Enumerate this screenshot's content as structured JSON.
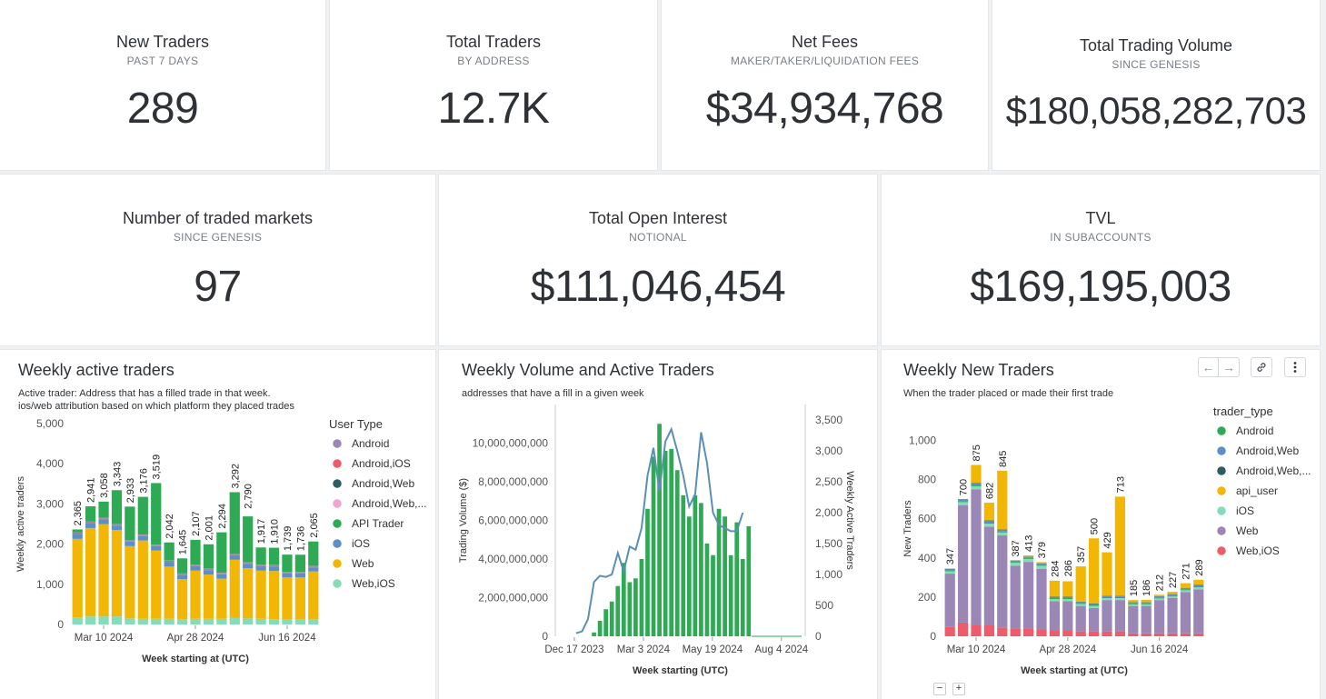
{
  "kpis_row1": [
    {
      "title": "New Traders",
      "subtitle": "PAST 7 DAYS",
      "value": "289"
    },
    {
      "title": "Total Traders",
      "subtitle": "BY ADDRESS",
      "value": "12.7K"
    },
    {
      "title": "Net Fees",
      "subtitle": "MAKER/TAKER/LIQUIDATION FEES",
      "value": "$34,934,768"
    },
    {
      "title": "Total Trading Volume",
      "subtitle": "SINCE GENESIS",
      "value": "$180,058,282,703"
    }
  ],
  "kpis_row2": [
    {
      "title": "Number of traded markets",
      "subtitle": "SINCE GENESIS",
      "value": "97"
    },
    {
      "title": "Total Open Interest",
      "subtitle": "NOTIONAL",
      "value": "$111,046,454"
    },
    {
      "title": "TVL",
      "subtitle": "IN SUBACCOUNTS",
      "value": "$169,195,003"
    }
  ],
  "chart1": {
    "title": "Weekly active traders",
    "desc1": "Active trader: Address that has a filled trade in that week.",
    "desc2": "ios/web attribution based on which platform they placed trades",
    "legend_title": "User Type",
    "legend_colors": [
      "#9b87b6",
      "#ee5c6b",
      "#2f5d5f",
      "#f3a3cf",
      "#2eaa55",
      "#5b8fc6",
      "#f2b705",
      "#86dcb9"
    ]
  },
  "chart2": {
    "title": "Weekly Volume and Active Traders",
    "desc": "addresses that have a fill in a given week",
    "bar_color": "#2eaa55",
    "line_color": "#5b8fb5"
  },
  "chart3": {
    "title": "Weekly New Traders",
    "desc": "When the trader placed or made their first trade",
    "legend_title": "trader_type",
    "legend_colors": [
      "#2eaa55",
      "#5b8fc6",
      "#2f5d5f",
      "#f2b705",
      "#86dcb9",
      "#9b87b6",
      "#ee5c6b"
    ]
  },
  "chart_data": [
    {
      "type": "bar",
      "title": "Weekly active traders",
      "xlabel": "Week starting at (UTC)",
      "ylabel": "Weekly active traders",
      "ylim": [
        0,
        5000
      ],
      "yticks": [
        "0",
        "1,000",
        "2,000",
        "3,000",
        "4,000",
        "5,000"
      ],
      "xtick_labels": [
        "Mar 10 2024",
        "Apr 28 2024",
        "Jun 16 2024"
      ],
      "xtick_index": [
        2,
        9,
        16
      ],
      "legend": [
        "Android",
        "Android,iOS",
        "Android,Web",
        "Android,Web,...",
        "API Trader",
        "iOS",
        "Web",
        "Web,iOS"
      ],
      "totals": [
        2365,
        2941,
        3058,
        3343,
        2933,
        3176,
        3519,
        2042,
        1645,
        2107,
        2001,
        2294,
        3292,
        2790,
        1917,
        1910,
        1739,
        1736,
        2065
      ],
      "total_labels": [
        "2,365",
        "2,941",
        "3,058",
        "3,343",
        "2,933",
        "3,176",
        "3,519",
        "2,042",
        "1,645",
        "2,107",
        "2,001",
        "2,294",
        "3,292",
        "2,790",
        "1,917",
        "1,910",
        "1,739",
        "1,736",
        "2,065"
      ],
      "series": [
        {
          "name": "Web,iOS",
          "values": [
            180,
            200,
            200,
            200,
            150,
            140,
            140,
            140,
            130,
            140,
            140,
            140,
            160,
            150,
            140,
            130,
            120,
            120,
            120
          ]
        },
        {
          "name": "Web",
          "values": [
            1950,
            2200,
            2300,
            2150,
            1800,
            1950,
            1700,
            1300,
            1000,
            1200,
            1100,
            1000,
            1450,
            1250,
            1200,
            1200,
            1050,
            1050,
            1200
          ]
        },
        {
          "name": "iOS",
          "values": [
            120,
            120,
            120,
            110,
            110,
            110,
            110,
            110,
            100,
            110,
            110,
            110,
            110,
            110,
            110,
            110,
            100,
            100,
            100
          ]
        },
        {
          "name": "Android",
          "values": [
            20,
            20,
            20,
            20,
            20,
            20,
            20,
            20,
            20,
            20,
            20,
            20,
            20,
            20,
            20,
            20,
            20,
            20,
            20
          ]
        },
        {
          "name": "Android,iOS",
          "values": [
            5,
            5,
            5,
            5,
            5,
            5,
            5,
            5,
            5,
            5,
            5,
            5,
            5,
            5,
            5,
            5,
            5,
            5,
            5
          ]
        },
        {
          "name": "Android,Web",
          "values": [
            10,
            10,
            10,
            10,
            10,
            10,
            10,
            10,
            10,
            10,
            10,
            10,
            10,
            10,
            10,
            10,
            10,
            10,
            10
          ]
        },
        {
          "name": "Android,Web,...",
          "values": [
            5,
            5,
            5,
            5,
            5,
            5,
            5,
            5,
            5,
            5,
            5,
            5,
            5,
            5,
            5,
            5,
            5,
            5,
            5
          ]
        },
        {
          "name": "API Trader",
          "values": [
            75,
            381,
            398,
            843,
            833,
            936,
            1529,
            452,
            375,
            617,
            606,
            1004,
            1532,
            1140,
            427,
            430,
            429,
            426,
            605
          ]
        }
      ]
    },
    {
      "type": "bar+line",
      "title": "Weekly Volume and Active Traders",
      "xlabel": "Week starting (UTC)",
      "ylabel": "Trading Volume ($)",
      "y2label": "Weekly Active Traders",
      "ylim": [
        0,
        12000000000
      ],
      "yticks": [
        "0",
        "2,000,000,000",
        "4,000,000,000",
        "6,000,000,000",
        "8,000,000,000",
        "10,000,000,000"
      ],
      "y2lim": [
        0,
        3750
      ],
      "y2ticks": [
        "0",
        "500",
        "1,000",
        "1,500",
        "2,000",
        "2,500",
        "3,000",
        "3,500"
      ],
      "xtick_labels": [
        "Dec 17 2023",
        "Mar 3 2024",
        "May 19 2024",
        "Aug 4 2024"
      ],
      "xtick_index": [
        6,
        17,
        28,
        39
      ],
      "volume": [
        0,
        0,
        200000000,
        800000000,
        1400000000,
        1800000000,
        2600000000,
        3800000000,
        2800000000,
        3000000000,
        4000000000,
        6600000000,
        9300000000,
        11000000000,
        9600000000,
        9700000000,
        8600000000,
        7300000000,
        6200000000,
        7300000000,
        6900000000,
        4800000000,
        4200000000,
        6600000000,
        6200000000,
        4200000000,
        5900000000,
        4000000000,
        5700000000
      ],
      "active_traders": [
        50,
        80,
        280,
        880,
        980,
        960,
        1000,
        1350,
        1050,
        1450,
        1400,
        1750,
        2600,
        3050,
        2350,
        3150,
        3350,
        3000,
        2600,
        2100,
        2300,
        3300,
        2800,
        2000,
        1800,
        1750,
        1700,
        1700,
        2000
      ],
      "start_index": 0
    },
    {
      "type": "bar",
      "title": "Weekly New Traders",
      "xlabel": "Week starting at (UTC)",
      "ylabel": "New Traders",
      "ylim": [
        0,
        1100
      ],
      "yticks": [
        "0",
        "200",
        "400",
        "600",
        "800",
        "1,000"
      ],
      "xtick_labels": [
        "Mar 10 2024",
        "Apr 28 2024",
        "Jun 16 2024"
      ],
      "xtick_index": [
        2,
        9,
        16
      ],
      "legend": [
        "Android",
        "Android,Web",
        "Android,Web,...",
        "api_user",
        "iOS",
        "Web",
        "Web,iOS"
      ],
      "totals": [
        347,
        700,
        875,
        682,
        845,
        387,
        413,
        379,
        284,
        286,
        357,
        500,
        429,
        713,
        185,
        186,
        212,
        227,
        271,
        289
      ],
      "total_labels": [
        "347",
        "700",
        "875",
        "682",
        "845",
        "387",
        "413",
        "379",
        "284",
        "286",
        "357",
        "500",
        "429",
        "713",
        "185",
        "186",
        "212",
        "227",
        "271",
        "289"
      ],
      "series": [
        {
          "name": "Web,iOS",
          "values": [
            50,
            70,
            60,
            60,
            45,
            40,
            40,
            35,
            30,
            30,
            25,
            25,
            25,
            25,
            15,
            15,
            15,
            15,
            15,
            15
          ]
        },
        {
          "name": "Web",
          "values": [
            270,
            600,
            690,
            500,
            470,
            320,
            340,
            310,
            150,
            150,
            130,
            120,
            160,
            160,
            140,
            140,
            170,
            180,
            210,
            225
          ]
        },
        {
          "name": "iOS",
          "values": [
            12,
            15,
            15,
            15,
            15,
            15,
            15,
            15,
            10,
            10,
            10,
            10,
            10,
            10,
            8,
            8,
            8,
            8,
            10,
            10
          ]
        },
        {
          "name": "Android",
          "values": [
            5,
            5,
            5,
            5,
            5,
            5,
            5,
            5,
            5,
            5,
            5,
            5,
            5,
            5,
            5,
            5,
            5,
            5,
            5,
            5
          ]
        },
        {
          "name": "Android,Web",
          "values": [
            5,
            8,
            10,
            10,
            8,
            5,
            5,
            5,
            5,
            5,
            5,
            5,
            5,
            5,
            5,
            5,
            5,
            5,
            5,
            5
          ]
        },
        {
          "name": "Android,Web,...",
          "values": [
            2,
            2,
            2,
            2,
            2,
            2,
            2,
            2,
            2,
            2,
            2,
            2,
            2,
            2,
            2,
            2,
            2,
            2,
            2,
            2
          ]
        },
        {
          "name": "api_user",
          "values": [
            3,
            0,
            93,
            90,
            300,
            0,
            6,
            7,
            82,
            79,
            180,
            333,
            222,
            506,
            10,
            11,
            7,
            12,
            24,
            27
          ]
        }
      ]
    }
  ]
}
